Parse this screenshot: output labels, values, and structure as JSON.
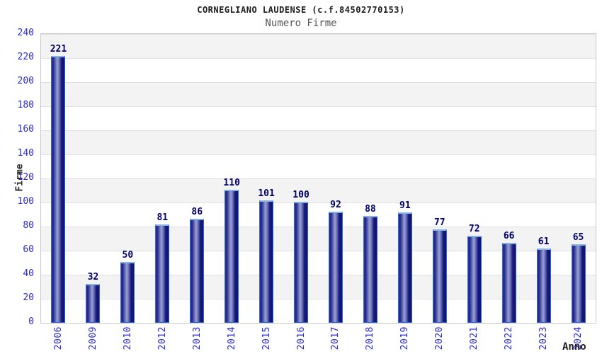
{
  "header": {
    "title": "CORNEGLIANO LAUDENSE (c.f.84502770153)",
    "subtitle": "Numero Firme"
  },
  "chart_data": {
    "type": "bar",
    "title": "CORNEGLIANO LAUDENSE (c.f.84502770153)",
    "subtitle": "Numero Firme",
    "xlabel": "Anno",
    "ylabel": "Firme",
    "categories": [
      "2006",
      "2009",
      "2010",
      "2012",
      "2013",
      "2014",
      "2015",
      "2016",
      "2017",
      "2018",
      "2019",
      "2020",
      "2021",
      "2022",
      "2023",
      "2024"
    ],
    "values": [
      221,
      32,
      50,
      81,
      86,
      110,
      101,
      100,
      92,
      88,
      91,
      77,
      72,
      66,
      61,
      65
    ],
    "ylim": [
      0,
      240
    ],
    "ytick_step": 20,
    "ytick_labels": [
      "240",
      "220",
      "200",
      "180",
      "160",
      "140",
      "120",
      "100",
      "80",
      "60",
      "40",
      "20",
      "0"
    ],
    "grid": "horizontal-bands",
    "legend_position": "none",
    "bar_value_labels_shown": true,
    "x_tick_rotation_degrees": 90
  },
  "colors": {
    "title_color": "#1c1c1c",
    "subtitle_color": "#555555",
    "axis_title_color": "#2a2a2a",
    "tick_label_blue": "#2a2ad2",
    "value_label_navy": "#00006e",
    "band_gray": "#f3f3f3",
    "band_white": "#ffffff",
    "gridline": "#e0e0e0",
    "plot_border": "#c9c9c9",
    "bar_dark": "#2d2d90",
    "bar_darker": "#13136f",
    "bar_light": "#99a2d4",
    "bar_border": "#2f6bd8",
    "bar_top_highlight": "#82b2e6"
  }
}
